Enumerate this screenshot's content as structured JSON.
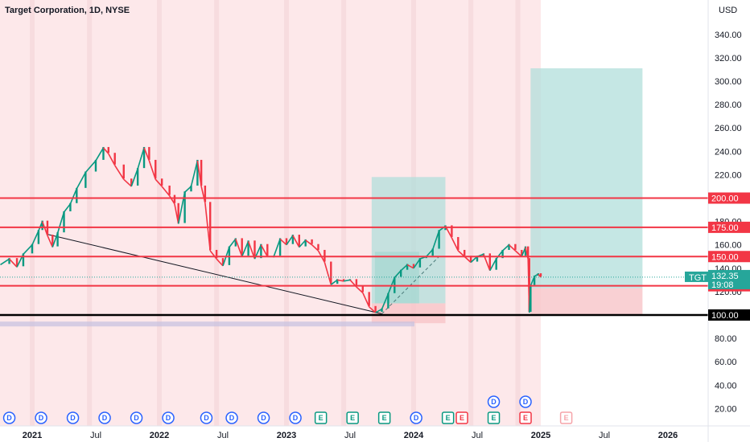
{
  "chart_data": {
    "type": "candlestick",
    "title": "Target Corporation, 1D, NYSE",
    "currency_label": "USD",
    "symbol": "TGT",
    "last_price": "132.35",
    "countdown": "19:08",
    "y_ticks": [
      340,
      320,
      300,
      280,
      260,
      240,
      220,
      200,
      180,
      160,
      140,
      120,
      100,
      80,
      60,
      40,
      20
    ],
    "y_tick_labels": [
      "340.00",
      "320.00",
      "300.00",
      "280.00",
      "260.00",
      "240.00",
      "220.00",
      "200.00",
      "180.00",
      "160.00",
      "140.00",
      "120.00",
      "100.00",
      "80.00",
      "60.00",
      "40.00",
      "20.00"
    ],
    "ylim": [
      12,
      356
    ],
    "x_axis_labels": [
      {
        "label": "2021",
        "t": 2021.0,
        "year": true
      },
      {
        "label": "Jul",
        "t": 2021.5,
        "year": false
      },
      {
        "label": "2022",
        "t": 2022.0,
        "year": true
      },
      {
        "label": "Jul",
        "t": 2022.5,
        "year": false
      },
      {
        "label": "2023",
        "t": 2023.0,
        "year": true
      },
      {
        "label": "Jul",
        "t": 2023.5,
        "year": false
      },
      {
        "label": "2024",
        "t": 2024.0,
        "year": true
      },
      {
        "label": "Jul",
        "t": 2024.5,
        "year": false
      },
      {
        "label": "2025",
        "t": 2025.0,
        "year": true
      },
      {
        "label": "Jul",
        "t": 2025.5,
        "year": false
      },
      {
        "label": "2026",
        "t": 2026.0,
        "year": true
      }
    ],
    "horizontal_levels": [
      {
        "value": 200,
        "label": "200.00",
        "color": "#f23645"
      },
      {
        "value": 175,
        "label": "175.00",
        "color": "#f23645"
      },
      {
        "value": 150,
        "label": "150.00",
        "color": "#f23645"
      },
      {
        "value": 125,
        "label": "125.00",
        "color": "#f23645"
      },
      {
        "value": 100,
        "label": "100.00",
        "color": "#000000"
      }
    ],
    "price_path": [
      [
        2020.75,
        143
      ],
      [
        2020.82,
        148
      ],
      [
        2020.88,
        141
      ],
      [
        2020.93,
        152
      ],
      [
        2021.0,
        160
      ],
      [
        2021.05,
        172
      ],
      [
        2021.08,
        180
      ],
      [
        2021.12,
        168
      ],
      [
        2021.16,
        158
      ],
      [
        2021.2,
        170
      ],
      [
        2021.25,
        188
      ],
      [
        2021.3,
        195
      ],
      [
        2021.35,
        208
      ],
      [
        2021.42,
        222
      ],
      [
        2021.5,
        232
      ],
      [
        2021.56,
        243
      ],
      [
        2021.6,
        238
      ],
      [
        2021.65,
        228
      ],
      [
        2021.72,
        216
      ],
      [
        2021.78,
        210
      ],
      [
        2021.83,
        225
      ],
      [
        2021.88,
        243
      ],
      [
        2021.92,
        232
      ],
      [
        2021.97,
        216
      ],
      [
        2022.02,
        210
      ],
      [
        2022.08,
        202
      ],
      [
        2022.12,
        195
      ],
      [
        2022.15,
        178
      ],
      [
        2022.2,
        205
      ],
      [
        2022.25,
        210
      ],
      [
        2022.3,
        232
      ],
      [
        2022.33,
        210
      ],
      [
        2022.36,
        196
      ],
      [
        2022.4,
        155
      ],
      [
        2022.45,
        148
      ],
      [
        2022.5,
        142
      ],
      [
        2022.55,
        158
      ],
      [
        2022.6,
        165
      ],
      [
        2022.65,
        150
      ],
      [
        2022.7,
        163
      ],
      [
        2022.75,
        148
      ],
      [
        2022.8,
        160
      ],
      [
        2022.85,
        150
      ],
      [
        2022.9,
        150
      ],
      [
        2022.95,
        165
      ],
      [
        2023.0,
        160
      ],
      [
        2023.05,
        168
      ],
      [
        2023.1,
        158
      ],
      [
        2023.15,
        164
      ],
      [
        2023.2,
        160
      ],
      [
        2023.25,
        155
      ],
      [
        2023.3,
        145
      ],
      [
        2023.35,
        126
      ],
      [
        2023.4,
        130
      ],
      [
        2023.45,
        129
      ],
      [
        2023.5,
        130
      ],
      [
        2023.55,
        124
      ],
      [
        2023.6,
        119
      ],
      [
        2023.65,
        107
      ],
      [
        2023.7,
        102
      ],
      [
        2023.75,
        105
      ],
      [
        2023.8,
        118
      ],
      [
        2023.85,
        132
      ],
      [
        2023.9,
        138
      ],
      [
        2023.95,
        143
      ],
      [
        2024.0,
        140
      ],
      [
        2024.05,
        148
      ],
      [
        2024.1,
        150
      ],
      [
        2024.15,
        156
      ],
      [
        2024.2,
        172
      ],
      [
        2024.25,
        176
      ],
      [
        2024.3,
        166
      ],
      [
        2024.35,
        155
      ],
      [
        2024.4,
        150
      ],
      [
        2024.45,
        145
      ],
      [
        2024.5,
        150
      ],
      [
        2024.55,
        152
      ],
      [
        2024.6,
        138
      ],
      [
        2024.65,
        148
      ],
      [
        2024.7,
        155
      ],
      [
        2024.75,
        160
      ],
      [
        2024.8,
        155
      ],
      [
        2024.85,
        150
      ],
      [
        2024.88,
        158
      ],
      [
        2024.9,
        148
      ],
      [
        2024.91,
        102
      ],
      [
        2024.92,
        125
      ],
      [
        2024.95,
        133
      ],
      [
        2024.98,
        135
      ],
      [
        2025.0,
        132.35
      ]
    ],
    "trendline": {
      "from": [
        2021.12,
        169
      ],
      "to": [
        2023.75,
        101
      ]
    },
    "dashed_projection": {
      "from": [
        2023.75,
        101
      ],
      "to": [
        2024.2,
        150
      ]
    },
    "positions": [
      {
        "name": "position-2023",
        "t0": 2023.67,
        "t1": 2024.25,
        "entry": 110,
        "target": 218,
        "stop": 93,
        "inner_target": 154
      },
      {
        "name": "position-2025",
        "t0": 2024.92,
        "t1": 2025.8,
        "entry": 123,
        "target": 311,
        "stop": 100
      }
    ],
    "events": [
      {
        "t": 2020.82,
        "kind": "D",
        "row": 0
      },
      {
        "t": 2021.07,
        "kind": "D",
        "row": 0
      },
      {
        "t": 2021.32,
        "kind": "D",
        "row": 0
      },
      {
        "t": 2021.57,
        "kind": "D",
        "row": 0
      },
      {
        "t": 2021.82,
        "kind": "D",
        "row": 0
      },
      {
        "t": 2022.07,
        "kind": "D",
        "row": 0
      },
      {
        "t": 2022.37,
        "kind": "D",
        "row": 0
      },
      {
        "t": 2022.57,
        "kind": "D",
        "row": 0
      },
      {
        "t": 2022.82,
        "kind": "D",
        "row": 0
      },
      {
        "t": 2023.07,
        "kind": "D",
        "row": 0
      },
      {
        "t": 2023.27,
        "kind": "E",
        "row": 0
      },
      {
        "t": 2023.52,
        "kind": "E",
        "row": 0
      },
      {
        "t": 2023.77,
        "kind": "E",
        "row": 0
      },
      {
        "t": 2024.02,
        "kind": "D",
        "row": 0
      },
      {
        "t": 2024.27,
        "kind": "E",
        "row": 0
      },
      {
        "t": 2024.38,
        "kind": "E-red",
        "row": 0
      },
      {
        "t": 2024.63,
        "kind": "E",
        "row": 0
      },
      {
        "t": 2024.88,
        "kind": "E-red",
        "row": 0
      },
      {
        "t": 2025.2,
        "kind": "E-faded",
        "row": 0
      },
      {
        "t": 2024.63,
        "kind": "D",
        "row": 1
      },
      {
        "t": 2024.88,
        "kind": "D",
        "row": 1
      }
    ],
    "colors": {
      "background_shade": "#fde8ea",
      "up": "#089981",
      "down": "#f23645",
      "profit_zone": "#b2dfdb",
      "loss_zone": "#f7c4c8",
      "level_red": "#f23645",
      "level_black": "#000000",
      "tgt_tag": "#26a69a"
    }
  }
}
